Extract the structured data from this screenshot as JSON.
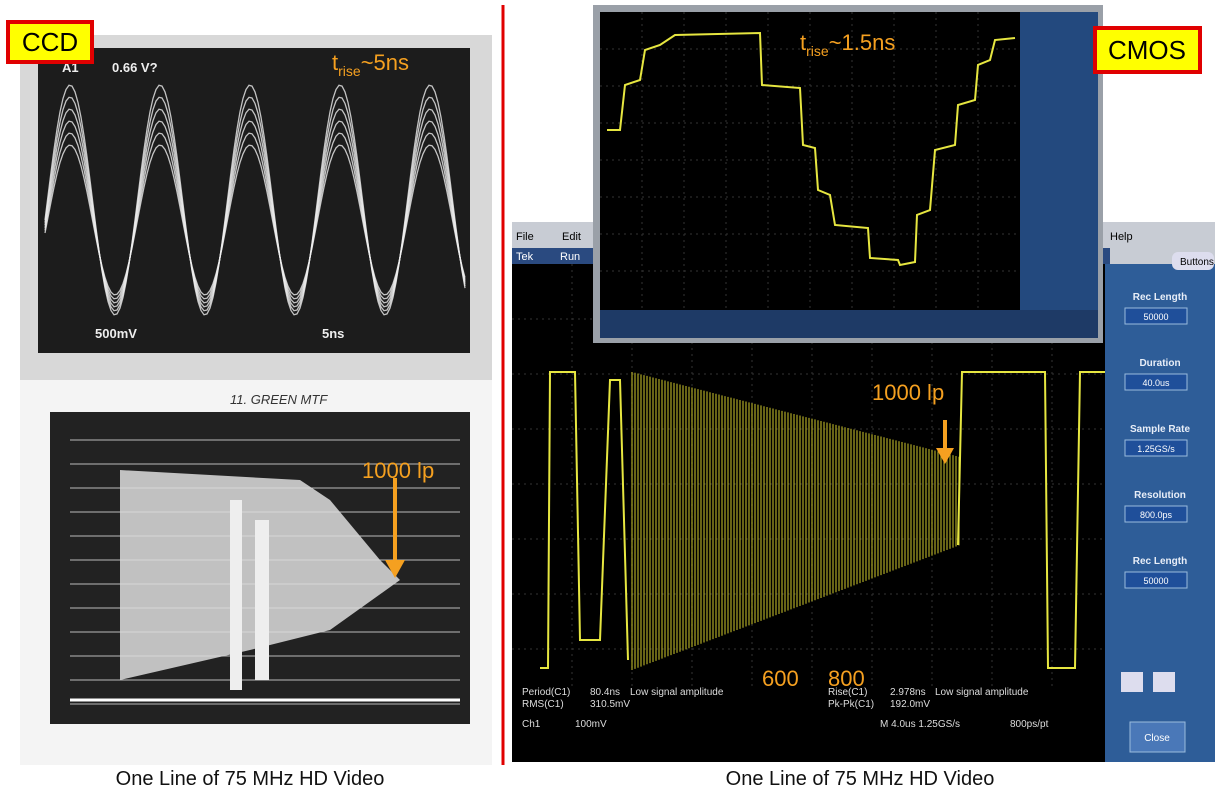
{
  "left": {
    "tag": "CCD",
    "rise": {
      "t": "t",
      "sub": "rise",
      "rest": "~5ns"
    },
    "top_scope": {
      "ch": "A1",
      "level": "0.66 V?",
      "volts": "500mV",
      "time": "5ns"
    },
    "handwriting": "11. GREEN MTF",
    "annotation": "1000 lp",
    "caption": "One Line of 75 MHz HD Video"
  },
  "right": {
    "tag": "CMOS",
    "rise": {
      "t": "t",
      "sub": "rise",
      "rest": "~1.5ns"
    },
    "menu": [
      "File",
      "Edit",
      "Help"
    ],
    "toolbar": [
      "Tek",
      "Run",
      "Buttons"
    ],
    "side_panel": [
      {
        "label": "Rec Length",
        "value": "50000"
      },
      {
        "label": "Duration",
        "value": "40.0us"
      },
      {
        "label": "Sample Rate",
        "value": "1.25GS/s"
      },
      {
        "label": "Resolution",
        "value": "800.0ps"
      },
      {
        "label": "Rec Length",
        "value": "50000"
      }
    ],
    "close": "Close",
    "readouts": [
      [
        "Period(C1)",
        "80.4ns",
        "Low signal amplitude"
      ],
      [
        "RMS(C1)",
        "310.5mV"
      ],
      [
        "Rise(C1)",
        "2.978ns",
        "Low signal amplitude"
      ],
      [
        "Pk-Pk(C1)",
        "192.0mV"
      ]
    ],
    "status": [
      "Ch1",
      "100mV",
      "M 4.0us 1.25GS/s",
      "800ps/pt"
    ],
    "annotation": "1000 lp",
    "markers": [
      "600",
      "800"
    ],
    "caption": "One Line of 75 MHz HD Video"
  }
}
